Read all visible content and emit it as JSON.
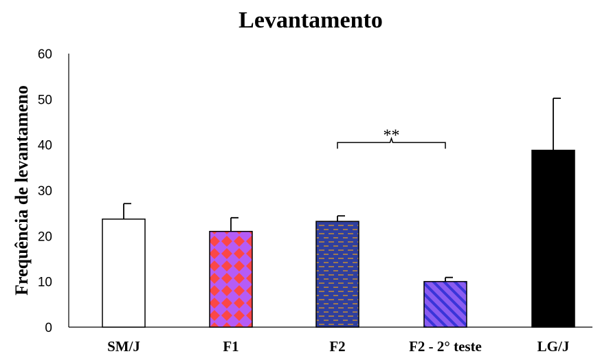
{
  "chart_data": {
    "type": "bar",
    "title": "Levantamento",
    "xlabel": "",
    "ylabel": "Frequência de levantameno",
    "ylim": [
      0,
      60
    ],
    "yticks": [
      0,
      10,
      20,
      30,
      40,
      50,
      60
    ],
    "grid": false,
    "categories": [
      "SM/J",
      "F1",
      "F2",
      "F2 - 2° teste",
      "LG/J"
    ],
    "values": [
      23.7,
      21.0,
      23.2,
      10.0,
      38.8
    ],
    "error_upper": [
      3.4,
      3.0,
      1.2,
      0.9,
      11.4
    ],
    "fills": [
      "white",
      "pattern-diamond",
      "pattern-dash",
      "pattern-diagonal",
      "black"
    ],
    "colors": {
      "sm_j": "#ffffff",
      "f1_base": "#b55cf6",
      "f1_diamond": "#fb4747",
      "f2_base": "#2f3f9e",
      "f2_dash": "#a0794e",
      "f2_2_base": "#8a5cf0",
      "f2_2_stripe": "#3a35d8",
      "lg_j": "#000000"
    },
    "annotation": {
      "text": "**",
      "from_category": "F2",
      "to_category": "F2 - 2° teste",
      "at_value": 40.5
    }
  }
}
